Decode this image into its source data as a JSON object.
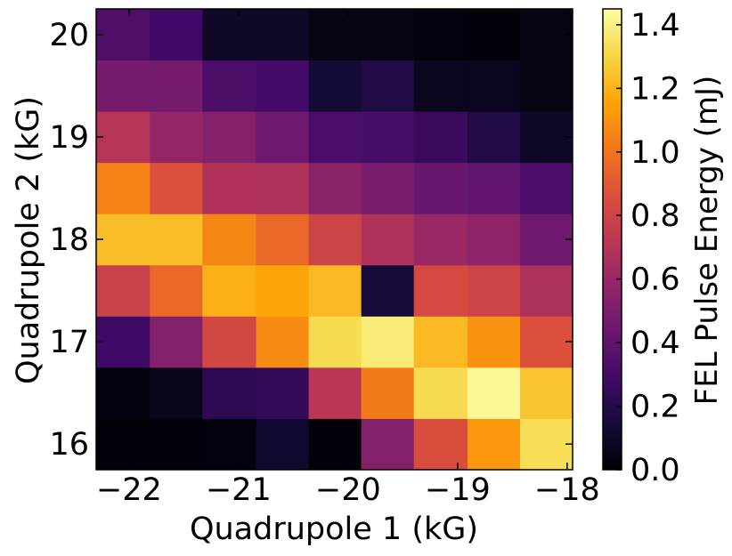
{
  "chart_data": {
    "type": "heatmap",
    "xlabel": "Quadrupole 1 (kG)",
    "ylabel": "Quadrupole 2 (kG)",
    "colorbar_label": "FEL Pulse Energy (mJ)",
    "colormap": "inferno",
    "xlim": [
      -22.3,
      -17.95
    ],
    "ylim": [
      15.75,
      20.25
    ],
    "x_ticks": [
      -22,
      -21,
      -20,
      -19,
      -18
    ],
    "x_tick_labels": [
      "−22",
      "−21",
      "−20",
      "−19",
      "−18"
    ],
    "y_ticks": [
      16,
      17,
      18,
      19,
      20
    ],
    "y_tick_labels": [
      "16",
      "17",
      "18",
      "19",
      "20"
    ],
    "color_range": [
      0.0,
      1.45
    ],
    "colorbar_ticks": [
      0.0,
      0.2,
      0.4,
      0.6,
      0.8,
      1.0,
      1.2,
      1.4
    ],
    "colorbar_tick_labels": [
      "0.0",
      "0.2",
      "0.4",
      "0.6",
      "0.8",
      "1.0",
      "1.2",
      "1.4"
    ],
    "x_edges": [
      -22.3,
      -21.81,
      -21.33,
      -20.84,
      -20.36,
      -19.88,
      -19.4,
      -18.91,
      -18.43,
      -17.95
    ],
    "y_edges": [
      15.75,
      16.25,
      16.75,
      17.25,
      17.75,
      18.25,
      18.75,
      19.25,
      19.75,
      20.25
    ],
    "rows_bottom_to_top": [
      [
        0.02,
        0.02,
        0.03,
        0.12,
        0.02,
        0.52,
        0.85,
        1.12,
        1.33
      ],
      [
        0.03,
        0.06,
        0.22,
        0.24,
        0.72,
        1.02,
        1.32,
        1.43,
        1.25
      ],
      [
        0.28,
        0.52,
        0.82,
        1.08,
        1.32,
        1.38,
        1.22,
        1.1,
        0.86
      ],
      [
        0.78,
        0.95,
        1.19,
        1.16,
        1.22,
        0.15,
        0.83,
        0.8,
        0.67
      ],
      [
        1.23,
        1.23,
        1.06,
        0.95,
        0.8,
        0.68,
        0.6,
        0.56,
        0.45
      ],
      [
        1.05,
        0.86,
        0.69,
        0.68,
        0.55,
        0.49,
        0.43,
        0.4,
        0.32
      ],
      [
        0.7,
        0.58,
        0.53,
        0.45,
        0.32,
        0.31,
        0.26,
        0.18,
        0.1
      ],
      [
        0.48,
        0.47,
        0.33,
        0.3,
        0.14,
        0.18,
        0.07,
        0.07,
        0.04
      ],
      [
        0.34,
        0.29,
        0.1,
        0.1,
        0.05,
        0.05,
        0.03,
        0.02,
        0.04
      ]
    ]
  }
}
